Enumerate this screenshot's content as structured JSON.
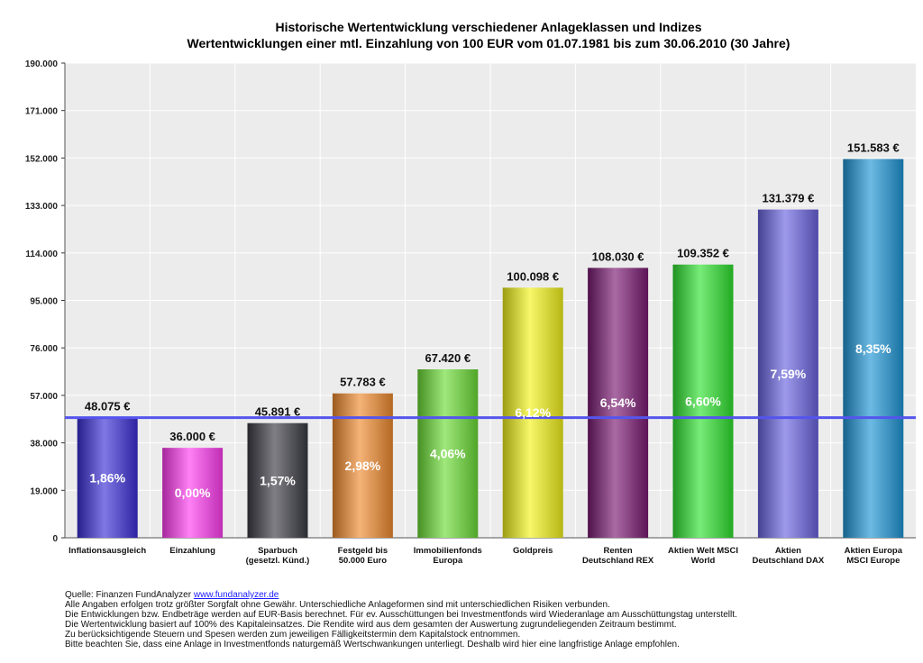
{
  "title": "Historische Wertentwicklung verschiedener Anlageklassen und Indizes",
  "subtitle": "Wertentwicklungen einer mtl. Einzahlung von 100 EUR vom 01.07.1981 bis zum 30.06.2010 (30 Jahre)",
  "chart_data": {
    "type": "bar",
    "categories": [
      [
        "Inflationsausgleich"
      ],
      [
        "Einzahlung"
      ],
      [
        "Sparbuch",
        "(gesetzl. Künd.)"
      ],
      [
        "Festgeld bis",
        "50.000 Euro"
      ],
      [
        "Immobilienfonds",
        "Europa"
      ],
      [
        "Goldpreis"
      ],
      [
        "Renten",
        "Deutschland REX"
      ],
      [
        "Aktien Welt MSCI",
        "World"
      ],
      [
        "Aktien",
        "Deutschland DAX"
      ],
      [
        "Aktien Europa",
        "MSCI Europe"
      ]
    ],
    "values": [
      48075,
      36000,
      45891,
      57783,
      67420,
      100098,
      108030,
      109352,
      131379,
      151583
    ],
    "value_labels": [
      "48.075 €",
      "36.000 €",
      "45.891 €",
      "57.783 €",
      "67.420 €",
      "100.098 €",
      "108.030 €",
      "109.352 €",
      "131.379 €",
      "151.583 €"
    ],
    "rate_labels": [
      "1,86%",
      "0,00%",
      "1,57%",
      "2,98%",
      "4,06%",
      "6,12%",
      "6,54%",
      "6,60%",
      "7,59%",
      "8,35%"
    ],
    "colors": [
      "#3b2fd6",
      "#ff3cf0",
      "#3a3a44",
      "#f08a2e",
      "#6bdc35",
      "#f2f21a",
      "#7a1a72",
      "#2fe12f",
      "#6a64e0",
      "#1f96d6"
    ],
    "ylim": [
      0,
      190000
    ],
    "yticks": [
      0,
      19000,
      38000,
      57000,
      76000,
      95000,
      114000,
      133000,
      152000,
      171000,
      190000
    ],
    "ytick_labels": [
      "0",
      "19.000",
      "38.000",
      "57.000",
      "76.000",
      "95.000",
      "114.000",
      "133.000",
      "152.000",
      "171.000",
      "190.000"
    ],
    "reference_line": {
      "value": 48075,
      "color": "#5555ee"
    },
    "grid": true
  },
  "footer": {
    "source_prefix": "Quelle: Finanzen FundAnalyzer ",
    "source_link": "www.fundanalyzer.de",
    "lines": [
      "Alle Angaben erfolgen trotz größter Sorgfalt ohne Gewähr. Unterschiedliche Anlageformen sind mit unterschiedlichen Risiken verbunden.",
      "Die Entwicklungen bzw. Endbeträge werden auf EUR-Basis berechnet. Für ev. Ausschüttungen bei Investmentfonds wird Wiederanlage am Ausschüttungstag unterstellt.",
      "Die Wertentwicklung basiert auf 100% des Kapitaleinsatzes. Die Rendite wird aus dem gesamten der Auswertung zugrundeliegenden Zeitraum bestimmt.",
      "Zu berücksichtigende Steuern und Spesen werden zum jeweiligen Fälligkeitstermin dem Kapitalstock entnommen.",
      "Bitte beachten Sie, dass eine Anlage in Investmentfonds naturgemäß Wertschwankungen unterliegt. Deshalb wird hier eine langfristige Anlage empfohlen."
    ]
  }
}
